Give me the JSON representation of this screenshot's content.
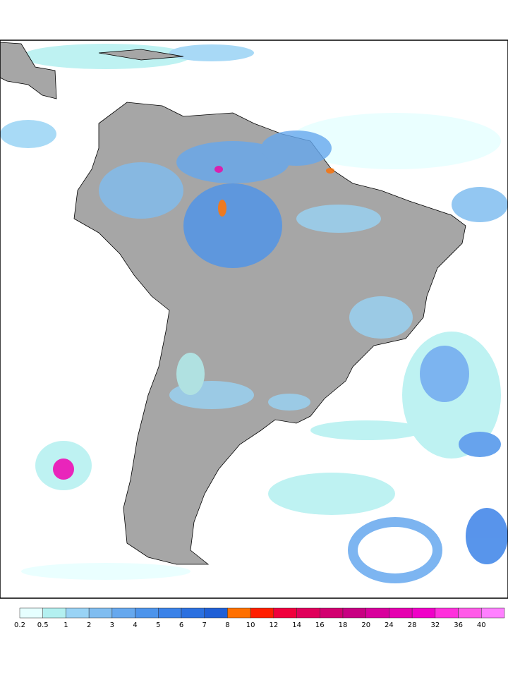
{
  "legend": {
    "ticks": [
      0.2,
      0.5,
      1,
      2,
      3,
      4,
      5,
      6,
      7,
      8,
      10,
      12,
      14,
      16,
      18,
      20,
      24,
      28,
      32,
      36,
      40
    ],
    "colors": [
      "#e6ffff",
      "#b3f0f0",
      "#99d3f5",
      "#80bdf0",
      "#66a8ee",
      "#4d94eb",
      "#3b82e8",
      "#2b70e0",
      "#1f5fd6",
      "#ff7000",
      "#ff1e00",
      "#f0003c",
      "#e0005a",
      "#d20070",
      "#c80082",
      "#d8009c",
      "#e600b0",
      "#f000c8",
      "#ff30dc",
      "#ff5ae8",
      "#ff80ff"
    ]
  }
}
